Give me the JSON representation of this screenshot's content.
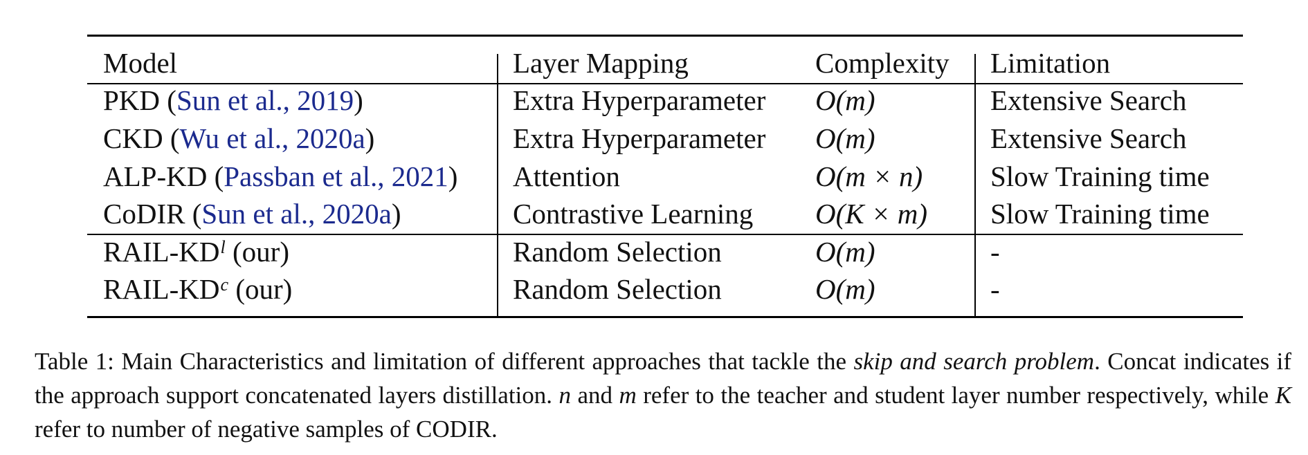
{
  "table": {
    "headers": {
      "model": "Model",
      "mapping": "Layer Mapping",
      "complexity": "Complexity",
      "limitation": "Limitation"
    },
    "rows": [
      {
        "model_name": "PKD",
        "cite_author": "Sun et al.,",
        "cite_year": "2019",
        "mapping": "Extra Hyperparameter",
        "complexity": "O(m)",
        "limitation": "Extensive Search"
      },
      {
        "model_name": "CKD",
        "cite_author": "Wu et al.,",
        "cite_year": "2020a",
        "mapping": "Extra Hyperparameter",
        "complexity": "O(m)",
        "limitation": "Extensive Search"
      },
      {
        "model_name": "ALP-KD",
        "cite_author": "Passban et al.,",
        "cite_year": "2021",
        "mapping": "Attention",
        "complexity": "O(m × n)",
        "limitation": "Slow Training time"
      },
      {
        "model_name": "CoDIR",
        "cite_author": "Sun et al.,",
        "cite_year": "2020a",
        "mapping": "Contrastive Learning",
        "complexity": "O(K × m)",
        "limitation": "Slow Training time"
      }
    ],
    "ours": [
      {
        "model_name": "RAIL-KD",
        "superscript": "l",
        "suffix": "(our)",
        "mapping": "Random Selection",
        "complexity": "O(m)",
        "limitation": "-"
      },
      {
        "model_name": "RAIL-KD",
        "superscript": "c",
        "suffix": "(our)",
        "mapping": "Random Selection",
        "complexity": "O(m)",
        "limitation": "-"
      }
    ]
  },
  "caption": {
    "label": "Table 1:",
    "text_before_em": "Main Characteristics and limitation of different approaches that tackle the",
    "em": "skip and search problem",
    "text_after_em": ". Concat indicates if the approach support concatenated layers distillation.",
    "n": "n",
    "and": "and",
    "m": "m",
    "text_refer": "refer to the teacher and student layer number respectively, while",
    "K": "K",
    "text_end": "refer to number of negative samples of CODIR."
  }
}
